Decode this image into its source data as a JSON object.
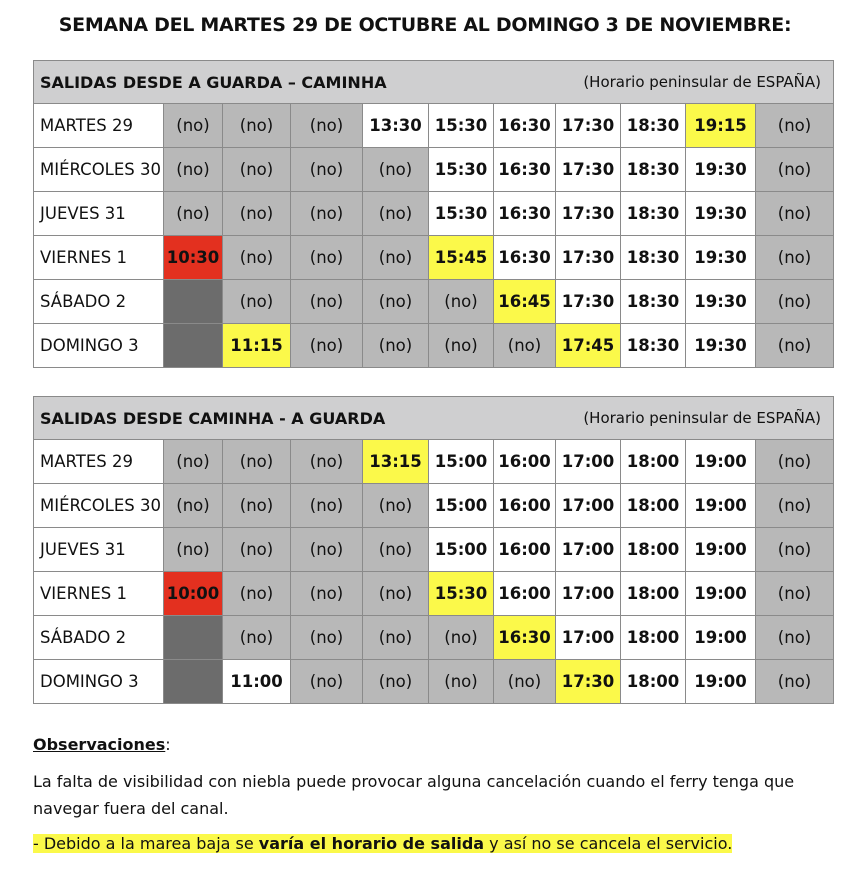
{
  "title": "SEMANA DEL MARTES 29 DE OCTUBRE AL DOMINGO 3 DE NOVIEMBRE:",
  "tables": [
    {
      "heading": "SALIDAS DESDE A GUARDA – CAMINHA",
      "note": "(Horario peninsular de ESPAÑA)",
      "rows": [
        {
          "day": "MARTES 29",
          "cells": [
            [
              "(no)",
              "no"
            ],
            [
              "(no)",
              "no"
            ],
            [
              "(no)",
              "no"
            ],
            [
              "13:30",
              "white"
            ],
            [
              "15:30",
              "white"
            ],
            [
              "16:30",
              "white"
            ],
            [
              "17:30",
              "white"
            ],
            [
              "18:30",
              "white"
            ],
            [
              "19:15",
              "yellow"
            ],
            [
              "(no)",
              "no"
            ]
          ]
        },
        {
          "day": "MIÉRCOLES 30",
          "cells": [
            [
              "(no)",
              "no"
            ],
            [
              "(no)",
              "no"
            ],
            [
              "(no)",
              "no"
            ],
            [
              "(no)",
              "no"
            ],
            [
              "15:30",
              "white"
            ],
            [
              "16:30",
              "white"
            ],
            [
              "17:30",
              "white"
            ],
            [
              "18:30",
              "white"
            ],
            [
              "19:30",
              "white"
            ],
            [
              "(no)",
              "no"
            ]
          ]
        },
        {
          "day": "JUEVES 31",
          "cells": [
            [
              "(no)",
              "no"
            ],
            [
              "(no)",
              "no"
            ],
            [
              "(no)",
              "no"
            ],
            [
              "(no)",
              "no"
            ],
            [
              "15:30",
              "white"
            ],
            [
              "16:30",
              "white"
            ],
            [
              "17:30",
              "white"
            ],
            [
              "18:30",
              "white"
            ],
            [
              "19:30",
              "white"
            ],
            [
              "(no)",
              "no"
            ]
          ]
        },
        {
          "day": "VIERNES 1",
          "cells": [
            [
              "10:30",
              "red"
            ],
            [
              "(no)",
              "no"
            ],
            [
              "(no)",
              "no"
            ],
            [
              "(no)",
              "no"
            ],
            [
              "15:45",
              "yellow"
            ],
            [
              "16:30",
              "white"
            ],
            [
              "17:30",
              "white"
            ],
            [
              "18:30",
              "white"
            ],
            [
              "19:30",
              "white"
            ],
            [
              "(no)",
              "no"
            ]
          ]
        },
        {
          "day": "SÁBADO 2",
          "cells": [
            [
              "",
              "dark"
            ],
            [
              "(no)",
              "no"
            ],
            [
              "(no)",
              "no"
            ],
            [
              "(no)",
              "no"
            ],
            [
              "(no)",
              "no"
            ],
            [
              "16:45",
              "yellow"
            ],
            [
              "17:30",
              "white"
            ],
            [
              "18:30",
              "white"
            ],
            [
              "19:30",
              "white"
            ],
            [
              "(no)",
              "no"
            ]
          ]
        },
        {
          "day": "DOMINGO 3",
          "cells": [
            [
              "",
              "dark"
            ],
            [
              "11:15",
              "yellow"
            ],
            [
              "(no)",
              "no"
            ],
            [
              "(no)",
              "no"
            ],
            [
              "(no)",
              "no"
            ],
            [
              "(no)",
              "no"
            ],
            [
              "17:45",
              "yellow"
            ],
            [
              "18:30",
              "white"
            ],
            [
              "19:30",
              "white"
            ],
            [
              "(no)",
              "no"
            ]
          ]
        }
      ]
    },
    {
      "heading": "SALIDAS DESDE CAMINHA  - A GUARDA",
      "note": "(Horario peninsular de ESPAÑA)",
      "rows": [
        {
          "day": "MARTES 29",
          "cells": [
            [
              "(no)",
              "no"
            ],
            [
              "(no)",
              "no"
            ],
            [
              "(no)",
              "no"
            ],
            [
              "13:15",
              "yellow"
            ],
            [
              "15:00",
              "white"
            ],
            [
              "16:00",
              "white"
            ],
            [
              "17:00",
              "white"
            ],
            [
              "18:00",
              "white"
            ],
            [
              "19:00",
              "white"
            ],
            [
              "(no)",
              "no"
            ]
          ]
        },
        {
          "day": "MIÉRCOLES 30",
          "cells": [
            [
              "(no)",
              "no"
            ],
            [
              "(no)",
              "no"
            ],
            [
              "(no)",
              "no"
            ],
            [
              "(no)",
              "no"
            ],
            [
              "15:00",
              "white"
            ],
            [
              "16:00",
              "white"
            ],
            [
              "17:00",
              "white"
            ],
            [
              "18:00",
              "white"
            ],
            [
              "19:00",
              "white"
            ],
            [
              "(no)",
              "no"
            ]
          ]
        },
        {
          "day": "JUEVES 31",
          "cells": [
            [
              "(no)",
              "no"
            ],
            [
              "(no)",
              "no"
            ],
            [
              "(no)",
              "no"
            ],
            [
              "(no)",
              "no"
            ],
            [
              "15:00",
              "white"
            ],
            [
              "16:00",
              "white"
            ],
            [
              "17:00",
              "white"
            ],
            [
              "18:00",
              "white"
            ],
            [
              "19:00",
              "white"
            ],
            [
              "(no)",
              "no"
            ]
          ]
        },
        {
          "day": "VIERNES 1",
          "cells": [
            [
              "10:00",
              "red"
            ],
            [
              "(no)",
              "no"
            ],
            [
              "(no)",
              "no"
            ],
            [
              "(no)",
              "no"
            ],
            [
              "15:30",
              "yellow"
            ],
            [
              "16:00",
              "white"
            ],
            [
              "17:00",
              "white"
            ],
            [
              "18:00",
              "white"
            ],
            [
              "19:00",
              "white"
            ],
            [
              "(no)",
              "no"
            ]
          ]
        },
        {
          "day": "SÁBADO 2",
          "cells": [
            [
              "",
              "dark"
            ],
            [
              "(no)",
              "no"
            ],
            [
              "(no)",
              "no"
            ],
            [
              "(no)",
              "no"
            ],
            [
              "(no)",
              "no"
            ],
            [
              "16:30",
              "yellow"
            ],
            [
              "17:00",
              "white"
            ],
            [
              "18:00",
              "white"
            ],
            [
              "19:00",
              "white"
            ],
            [
              "(no)",
              "no"
            ]
          ]
        },
        {
          "day": "DOMINGO 3",
          "cells": [
            [
              "",
              "dark"
            ],
            [
              "11:00",
              "white"
            ],
            [
              "(no)",
              "no"
            ],
            [
              "(no)",
              "no"
            ],
            [
              "(no)",
              "no"
            ],
            [
              "(no)",
              "no"
            ],
            [
              "17:30",
              "yellow"
            ],
            [
              "18:00",
              "white"
            ],
            [
              "19:00",
              "white"
            ],
            [
              "(no)",
              "no"
            ]
          ]
        }
      ]
    }
  ],
  "observations": {
    "title": "Observaciones",
    "colon": ":",
    "text": "La falta de visibilidad con niebla puede provocar alguna cancelación cuando el ferry tenga que navegar fuera del canal.",
    "note_pre": "- Debido a la marea baja se ",
    "note_bold": "varía el horario de salida",
    "note_post": " y así no se cancela el servicio."
  },
  "colors": {
    "no": "#b8b8b8",
    "yellow": "#fbf94a",
    "red": "#e3301f",
    "dark": "#6c6c6c",
    "header": "#cfcfd0"
  }
}
